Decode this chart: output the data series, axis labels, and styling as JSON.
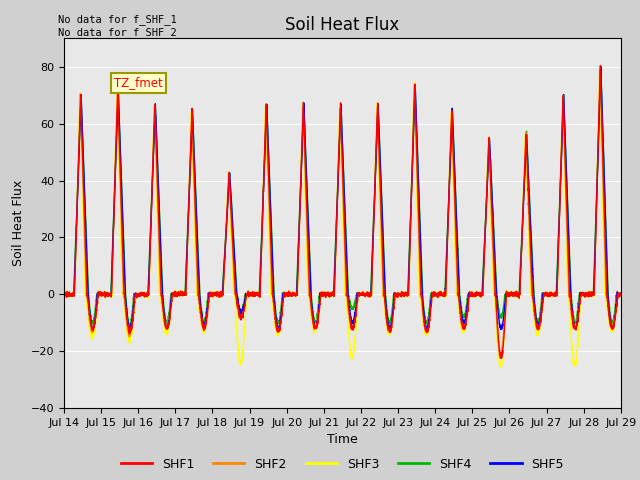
{
  "title": "Soil Heat Flux",
  "ylabel": "Soil Heat Flux",
  "xlabel": "Time",
  "ylim": [
    -40,
    90
  ],
  "xlim": [
    0,
    15
  ],
  "xtick_labels": [
    "Jul 14",
    "Jul 15",
    "Jul 16",
    "Jul 17",
    "Jul 18",
    "Jul 19",
    "Jul 20",
    "Jul 21",
    "Jul 22",
    "Jul 23",
    "Jul 24",
    "Jul 25",
    "Jul 26",
    "Jul 27",
    "Jul 28",
    "Jul 29"
  ],
  "xtick_positions": [
    0,
    1,
    2,
    3,
    4,
    5,
    6,
    7,
    8,
    9,
    10,
    11,
    12,
    13,
    14,
    15
  ],
  "series_colors": {
    "SHF1": "#ff0000",
    "SHF2": "#ff8800",
    "SHF3": "#ffff00",
    "SHF4": "#00bb00",
    "SHF5": "#0000ff"
  },
  "annotation_text": "No data for f_SHF_1\nNo data for f_SHF_2",
  "legend_label": "TZ_fmet",
  "plot_bg_color": "#e8e8e8",
  "title_fontsize": 12,
  "axis_fontsize": 9,
  "tick_fontsize": 8
}
